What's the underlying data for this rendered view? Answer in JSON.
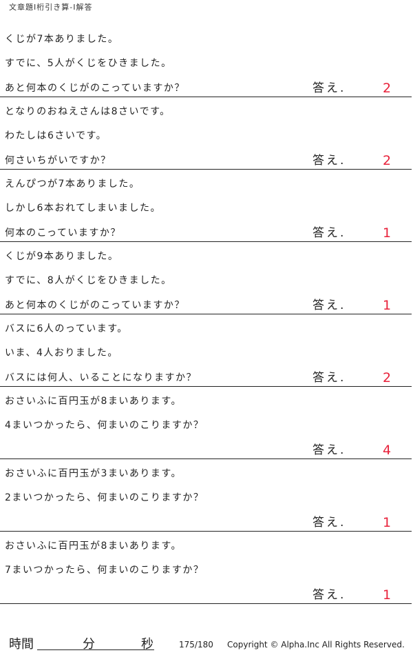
{
  "header": {
    "title": "文章題Ⅰ桁引き算-Ⅰ解答"
  },
  "answer_label": "答え.",
  "accent_color": "#e8213a",
  "problems": [
    {
      "lines": [
        "くじが7本ありました。",
        "すでに、5人がくじをひきました。",
        "あと何本のくじがのこっていますか？"
      ],
      "answer": "2"
    },
    {
      "lines": [
        "となりのおねえさんは8さいです。",
        "わたしは6さいです。",
        "何さいちがいですか？"
      ],
      "answer": "2"
    },
    {
      "lines": [
        "えんぴつが7本ありました。",
        "しかし6本おれてしまいました。",
        "何本のこっていますか？"
      ],
      "answer": "1"
    },
    {
      "lines": [
        "くじが9本ありました。",
        "すでに、8人がくじをひきました。",
        "あと何本のくじがのこっていますか？"
      ],
      "answer": "1"
    },
    {
      "lines": [
        "バスに6人のっています。",
        "いま、4人おりました。",
        "バスには何人、いることになりますか？"
      ],
      "answer": "2"
    },
    {
      "lines": [
        "おさいふに百円玉が8まいあります。",
        "4まいつかったら、何まいのこりますか？"
      ],
      "answer": "4"
    },
    {
      "lines": [
        "おさいふに百円玉が3まいあります。",
        "2まいつかったら、何まいのこりますか？"
      ],
      "answer": "1"
    },
    {
      "lines": [
        "おさいふに百円玉が8まいあります。",
        "7まいつかったら、何まいのこりますか？"
      ],
      "answer": "1"
    }
  ],
  "footer": {
    "time_label": "時間",
    "minutes_label": "分",
    "seconds_label": "秒",
    "page": "175/180",
    "copyright": "Copyright ©  Alpha.Inc All Rights Reserved."
  }
}
